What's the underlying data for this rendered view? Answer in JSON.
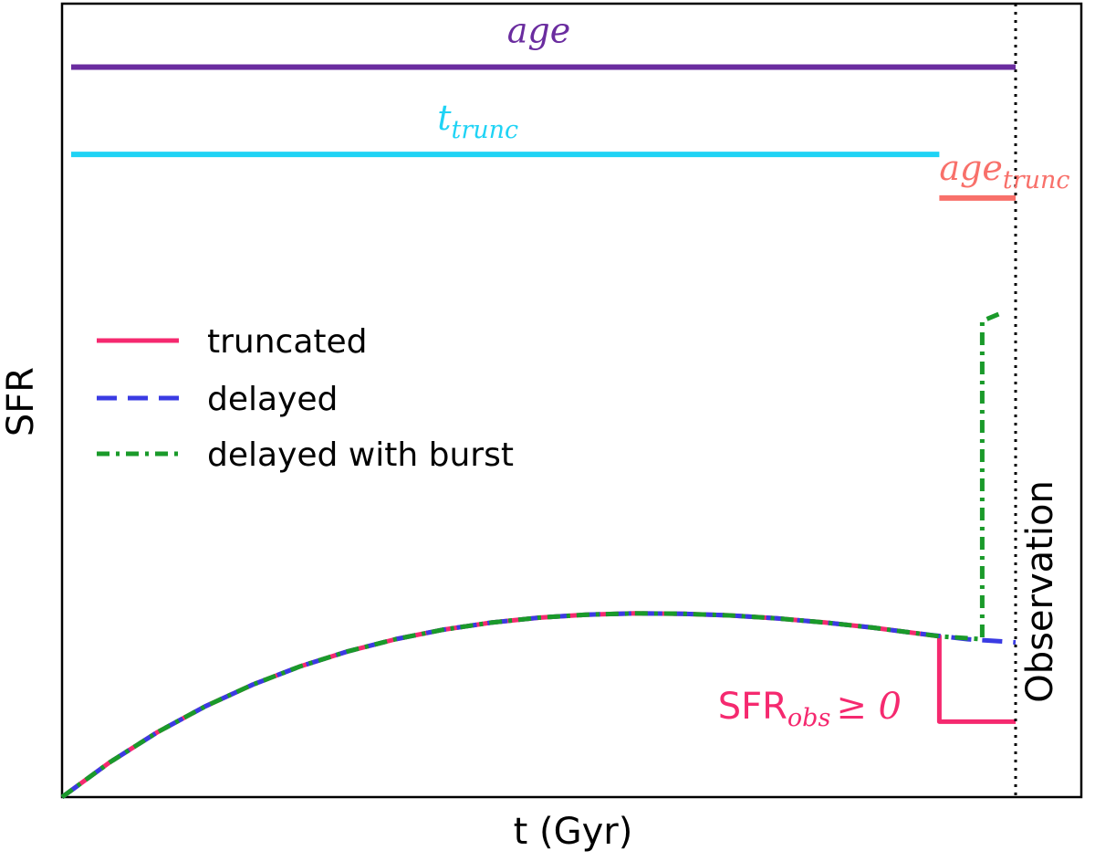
{
  "colors": {
    "age": "#6a2c9f",
    "t_trunc": "#1fd3f5",
    "age_trunc": "#f8706a",
    "truncated": "#f5296f",
    "delayed": "#3a3be3",
    "burst": "#1a9a2a",
    "observation": "#000000"
  },
  "chart_data": {
    "type": "line",
    "xlabel": "t (Gyr)",
    "ylabel": "SFR",
    "xlim": [
      0,
      1.1
    ],
    "ylim": [
      0,
      1.0
    ],
    "grid": false,
    "legend_placement": "center-left",
    "observation_x": 1.0,
    "observation_label": "Observation",
    "truncation_x": 0.92,
    "bars": [
      {
        "key": "age",
        "label": "age",
        "x_start": 0.0,
        "x_end": 1.0,
        "y": 0.92
      },
      {
        "key": "t_trunc",
        "label": "t",
        "sub": "trunc",
        "x_start": 0.0,
        "x_end": 0.92,
        "y": 0.81
      },
      {
        "key": "age_trunc",
        "label": "age",
        "sub": "trunc",
        "x_start": 0.92,
        "x_end": 1.0,
        "y": 0.755
      }
    ],
    "annotation": {
      "prefix": "SFR",
      "sub": "obs",
      "rel": "≥ 0"
    },
    "series": [
      {
        "name": "truncated",
        "key": "truncated",
        "style": "solid",
        "x": [
          0,
          0.05,
          0.1,
          0.15,
          0.2,
          0.25,
          0.3,
          0.35,
          0.4,
          0.45,
          0.5,
          0.55,
          0.6,
          0.65,
          0.7,
          0.75,
          0.8,
          0.85,
          0.9,
          0.92,
          0.92,
          1.0
        ],
        "y": [
          0,
          0.0439,
          0.0818,
          0.1143,
          0.1418,
          0.1649,
          0.1838,
          0.1991,
          0.211,
          0.2199,
          0.2261,
          0.2299,
          0.2315,
          0.2311,
          0.229,
          0.2252,
          0.22,
          0.2136,
          0.2059,
          0.2026,
          0.095,
          0.095
        ]
      },
      {
        "name": "delayed",
        "key": "delayed",
        "style": "dashed",
        "x": [
          0,
          0.05,
          0.1,
          0.15,
          0.2,
          0.25,
          0.3,
          0.35,
          0.4,
          0.45,
          0.5,
          0.55,
          0.6,
          0.65,
          0.7,
          0.75,
          0.8,
          0.85,
          0.9,
          0.95,
          1.0
        ],
        "y": [
          0,
          0.0439,
          0.0818,
          0.1143,
          0.1418,
          0.1649,
          0.1838,
          0.1991,
          0.211,
          0.2199,
          0.2261,
          0.2299,
          0.2315,
          0.2311,
          0.229,
          0.2252,
          0.22,
          0.2136,
          0.2059,
          0.199,
          0.195
        ]
      },
      {
        "name": "delayed with burst",
        "key": "burst",
        "style": "dashdot",
        "x": [
          0,
          0.05,
          0.1,
          0.15,
          0.2,
          0.25,
          0.3,
          0.35,
          0.4,
          0.45,
          0.5,
          0.55,
          0.6,
          0.65,
          0.7,
          0.75,
          0.8,
          0.85,
          0.9,
          0.92,
          0.965,
          0.965,
          0.985
        ],
        "y": [
          0,
          0.0439,
          0.0818,
          0.1143,
          0.1418,
          0.1649,
          0.1838,
          0.1991,
          0.211,
          0.2199,
          0.2261,
          0.2299,
          0.2315,
          0.2311,
          0.229,
          0.2252,
          0.22,
          0.2136,
          0.2059,
          0.2026,
          0.199,
          0.6,
          0.61
        ]
      }
    ]
  }
}
